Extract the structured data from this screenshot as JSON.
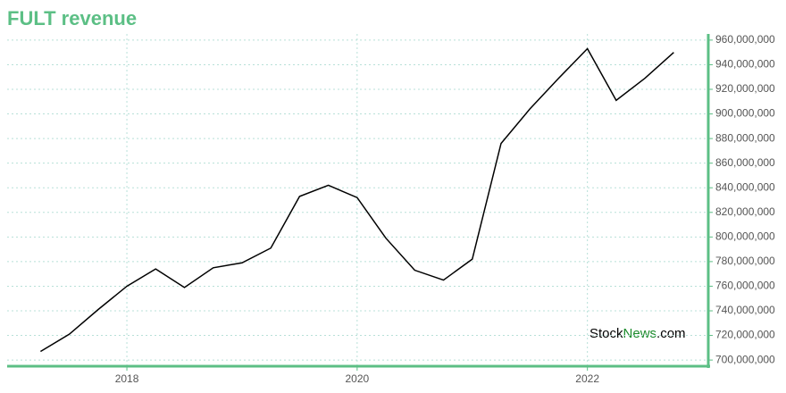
{
  "chart_data": {
    "type": "line",
    "title": "FULT revenue",
    "watermark": [
      "Stock",
      "News",
      ".com"
    ],
    "x": [
      2017.25,
      2017.5,
      2017.75,
      2018,
      2018.25,
      2018.5,
      2018.75,
      2019,
      2019.25,
      2019.5,
      2019.75,
      2020,
      2020.25,
      2020.5,
      2020.75,
      2021,
      2021.25,
      2021.5,
      2021.75,
      2022,
      2022.25,
      2022.5,
      2022.75
    ],
    "series": [
      {
        "name": "FULT revenue",
        "color": "#000000",
        "values": [
          707000000,
          721000000,
          741000000,
          760000000,
          774000000,
          759000000,
          775000000,
          779000000,
          791000000,
          833000000,
          842000000,
          832000000,
          799000000,
          773000000,
          765000000,
          782000000,
          876000000,
          904000000,
          929000000,
          953000000,
          911000000,
          929000000,
          950000000
        ]
      }
    ],
    "xlim": [
      2016.96,
      2023.05
    ],
    "xticks": [
      2018,
      2020,
      2022
    ],
    "ylim": [
      695000000,
      965000000
    ],
    "yticks": [
      {
        "value": 700000000,
        "label": "700,000,000"
      },
      {
        "value": 720000000,
        "label": "720,000,000"
      },
      {
        "value": 740000000,
        "label": "740,000,000"
      },
      {
        "value": 760000000,
        "label": "760,000,000"
      },
      {
        "value": 780000000,
        "label": "780,000,000"
      },
      {
        "value": 800000000,
        "label": "800,000,000"
      },
      {
        "value": 820000000,
        "label": "820,000,000"
      },
      {
        "value": 840000000,
        "label": "840,000,000"
      },
      {
        "value": 860000000,
        "label": "860,000,000"
      },
      {
        "value": 880000000,
        "label": "880,000,000"
      },
      {
        "value": 900000000,
        "label": "900,000,000"
      },
      {
        "value": 920000000,
        "label": "920,000,000"
      },
      {
        "value": 940000000,
        "label": "940,000,000"
      },
      {
        "value": 960000000,
        "label": "960,000,000"
      }
    ],
    "grid": true,
    "axis_color": "#5cbf85"
  }
}
